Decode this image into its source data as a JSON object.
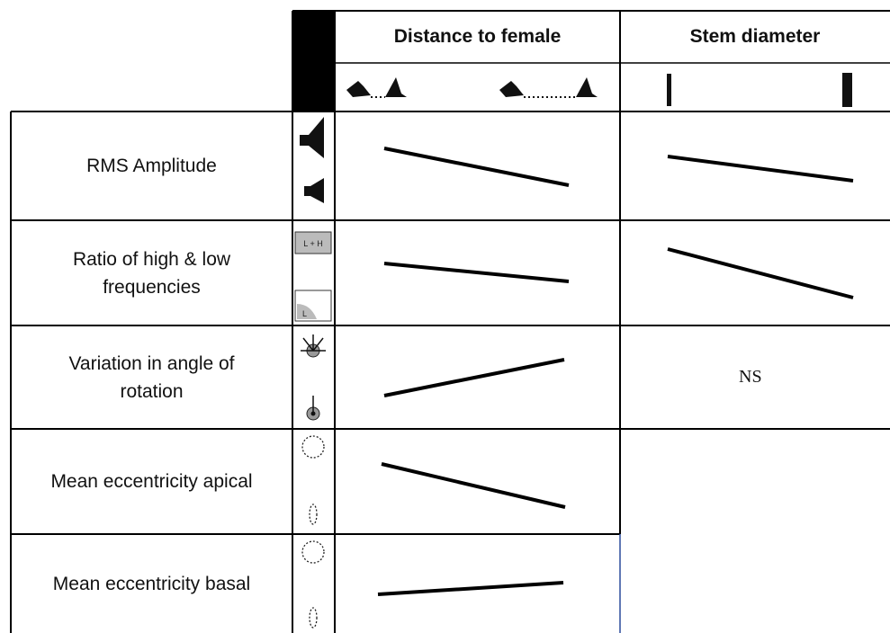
{
  "header": {
    "columns": [
      "Distance to female",
      "Stem diameter"
    ]
  },
  "rows": [
    {
      "label": "RMS Amplitude"
    },
    {
      "label": "Ratio of high & low frequencies",
      "icons": [
        "L + H",
        "L"
      ]
    },
    {
      "label": "Variation in angle of rotation",
      "stem": "NS"
    },
    {
      "label": "Mean eccentricity apical"
    },
    {
      "label": "Mean eccentricity basal"
    }
  ]
}
